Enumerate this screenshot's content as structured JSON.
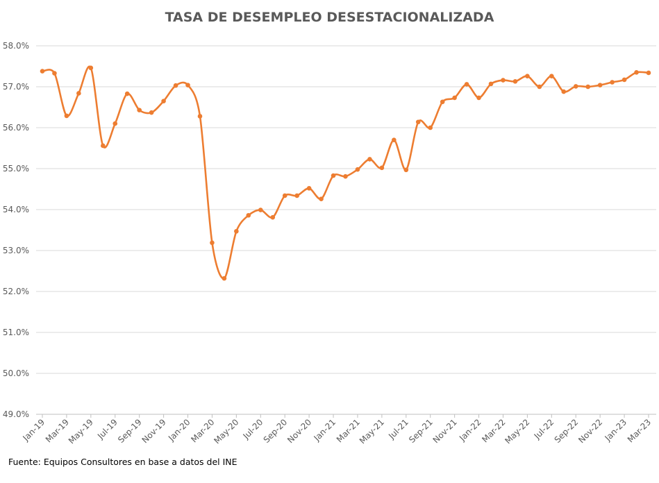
{
  "chart_data": {
    "type": "line",
    "title": "TASA DE DESEMPLEO DESESTACIONALIZADA",
    "xlabel": "",
    "ylabel": "",
    "ylim": [
      49.0,
      58.0
    ],
    "yticks": [
      "49.0%",
      "50.0%",
      "51.0%",
      "52.0%",
      "53.0%",
      "54.0%",
      "55.0%",
      "56.0%",
      "57.0%",
      "58.0%"
    ],
    "grid": "horizontal",
    "legend": "none",
    "line_color": "#ED7D31",
    "x": [
      "Jan-19",
      "Feb-19",
      "Mar-19",
      "Apr-19",
      "May-19",
      "Jun-19",
      "Jul-19",
      "Aug-19",
      "Sep-19",
      "Oct-19",
      "Nov-19",
      "Dec-19",
      "Jan-20",
      "Feb-20",
      "Mar-20",
      "Apr-20",
      "May-20",
      "Jun-20",
      "Jul-20",
      "Aug-20",
      "Sep-20",
      "Oct-20",
      "Nov-20",
      "Dec-20",
      "Jan-21",
      "Feb-21",
      "Mar-21",
      "Apr-21",
      "May-21",
      "Jun-21",
      "Jul-21",
      "Aug-21",
      "Sep-21",
      "Oct-21",
      "Nov-21",
      "Dec-21",
      "Jan-22",
      "Feb-22",
      "Mar-22",
      "Apr-22",
      "May-22",
      "Jun-22",
      "Jul-22",
      "Aug-22",
      "Sep-22",
      "Oct-22",
      "Nov-22",
      "Dec-22",
      "Jan-23",
      "Feb-23",
      "Mar-23"
    ],
    "x_tick_labels": [
      "Jan-19",
      "Mar-19",
      "May-19",
      "Jul-19",
      "Sep-19",
      "Nov-19",
      "Jan-20",
      "Mar-20",
      "May-20",
      "Jul-20",
      "Sep-20",
      "Nov-20",
      "Jan-21",
      "Mar-21",
      "May-21",
      "Jul-21",
      "Sep-21",
      "Nov-21",
      "Jan-22",
      "Mar-22",
      "May-22",
      "Jul-22",
      "Sep-22",
      "Nov-22",
      "Jan-23",
      "Mar-23"
    ],
    "series": [
      {
        "values": [
          57.38,
          57.33,
          56.29,
          56.84,
          57.46,
          55.56,
          56.1,
          56.83,
          56.43,
          56.37,
          56.65,
          57.03,
          57.04,
          56.28,
          53.19,
          52.32,
          53.47,
          53.86,
          53.99,
          53.81,
          54.34,
          54.34,
          54.52,
          54.26,
          54.83,
          54.81,
          54.98,
          55.23,
          55.02,
          55.7,
          54.97,
          56.14,
          56.0,
          56.63,
          56.73,
          57.06,
          56.73,
          57.07,
          57.16,
          57.13,
          57.26,
          57.0,
          57.26,
          56.88,
          57.01,
          57.0,
          57.04,
          57.11,
          57.17,
          57.35,
          57.34
        ]
      }
    ]
  },
  "source_note": "Fuente: Equipos Consultores en base a datos del INE"
}
